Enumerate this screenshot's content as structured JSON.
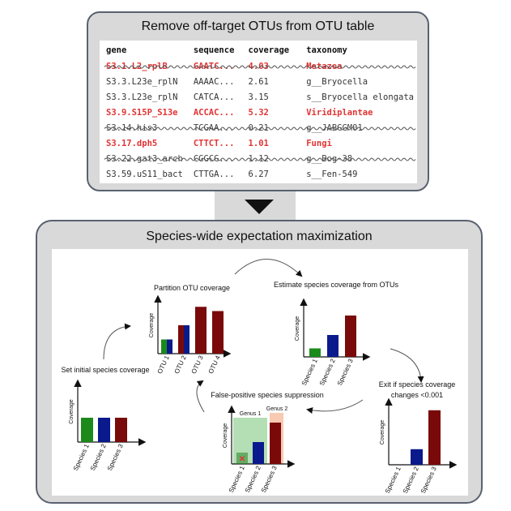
{
  "top_panel": {
    "title": "Remove off-target OTUs from OTU table",
    "columns": [
      "gene",
      "sequence",
      "coverage",
      "taxonomy"
    ],
    "rows": [
      {
        "gene": "S3.1.L2_rplB",
        "sequence": "GAATC...",
        "coverage": "4.03",
        "taxonomy": "Metazoa",
        "style": "removed-red"
      },
      {
        "gene": "S3.3.L23e_rplN",
        "sequence": "AAAAC...",
        "coverage": "2.61",
        "taxonomy": "g__Bryocella",
        "style": "normal"
      },
      {
        "gene": "S3.3.L23e_rplN",
        "sequence": "CATCA...",
        "coverage": "3.15",
        "taxonomy": "s__Bryocella elongata",
        "style": "normal"
      },
      {
        "gene": "S3.9.S15P_S13e",
        "sequence": "ACCAC...",
        "coverage": "5.32",
        "taxonomy": "Viridiplantae",
        "style": "kept-red"
      },
      {
        "gene": "S3.14.his3",
        "sequence": "TCGAA...",
        "coverage": "0.21",
        "taxonomy": "g__JABGGM01",
        "style": "removed-grey"
      },
      {
        "gene": "S3.17.dph5",
        "sequence": "CTTCT...",
        "coverage": "1.01",
        "taxonomy": "Fungi",
        "style": "kept-red"
      },
      {
        "gene": "S3.22.gat3_arch",
        "sequence": "CGGCG...",
        "coverage": "1.12",
        "taxonomy": "g__Bog-38",
        "style": "removed-grey"
      },
      {
        "gene": "S3.59.uS11_bact",
        "sequence": "CTTGA...",
        "coverage": "6.27",
        "taxonomy": "s__Fen-549",
        "style": "normal"
      }
    ]
  },
  "bottom_panel": {
    "title": "Species-wide expectation maximization",
    "steps": {
      "set_initial": "Set initial species coverage",
      "partition": "Partition OTU coverage",
      "estimate": "Estimate species coverage from OTUs",
      "exit": "Exit if species coverage",
      "exit_line2": "changes <0.001",
      "suppression": "False-positive species suppression"
    },
    "axis_label": "Coverage",
    "genus_labels": [
      "Genus 1",
      "Genus 2"
    ],
    "removed_marker": "✕"
  },
  "colors": {
    "species1": "#1b8a1b",
    "species2": "#0a1a8c",
    "species3": "#7a0a0a",
    "red_text": "#e23333"
  },
  "chart_data": [
    {
      "type": "bar",
      "title": "Set initial species coverage",
      "ylabel": "Coverage",
      "categories": [
        "Species 1",
        "Species 2",
        "Species 3"
      ],
      "values": [
        1,
        1,
        1
      ],
      "colors": [
        "#1b8a1b",
        "#0a1a8c",
        "#7a0a0a"
      ]
    },
    {
      "type": "bar",
      "title": "Partition OTU coverage",
      "ylabel": "Coverage",
      "categories": [
        "OTU 1",
        "OTU 2",
        "OTU 3",
        "OTU 4"
      ],
      "series": [
        {
          "name": "Species 1",
          "values": [
            0.5,
            0,
            0,
            0
          ]
        },
        {
          "name": "Species 2",
          "values": [
            0.5,
            1.0,
            0,
            0
          ]
        },
        {
          "name": "Species 3",
          "values": [
            0,
            1.0,
            1.65,
            1.5
          ]
        }
      ]
    },
    {
      "type": "bar",
      "title": "Estimate species coverage from OTUs",
      "ylabel": "Coverage",
      "categories": [
        "Species 1",
        "Species 2",
        "Species 3"
      ],
      "values": [
        0.35,
        0.9,
        1.7
      ],
      "colors": [
        "#1b8a1b",
        "#0a1a8c",
        "#7a0a0a"
      ]
    },
    {
      "type": "bar",
      "title": "False-positive species suppression",
      "ylabel": "Coverage",
      "categories": [
        "Species 1",
        "Species 2",
        "Species 3"
      ],
      "values": [
        0.35,
        0.9,
        1.7
      ],
      "colors": [
        "#1b8a1b",
        "#0a1a8c",
        "#7a0a0a"
      ]
    },
    {
      "type": "bar",
      "title": "Exit if species coverage changes <0.001",
      "ylabel": "Coverage",
      "categories": [
        "Species 1",
        "Species 2",
        "Species 3"
      ],
      "values": [
        0,
        0.6,
        2.1
      ],
      "colors": [
        "#1b8a1b",
        "#0a1a8c",
        "#7a0a0a"
      ]
    }
  ]
}
